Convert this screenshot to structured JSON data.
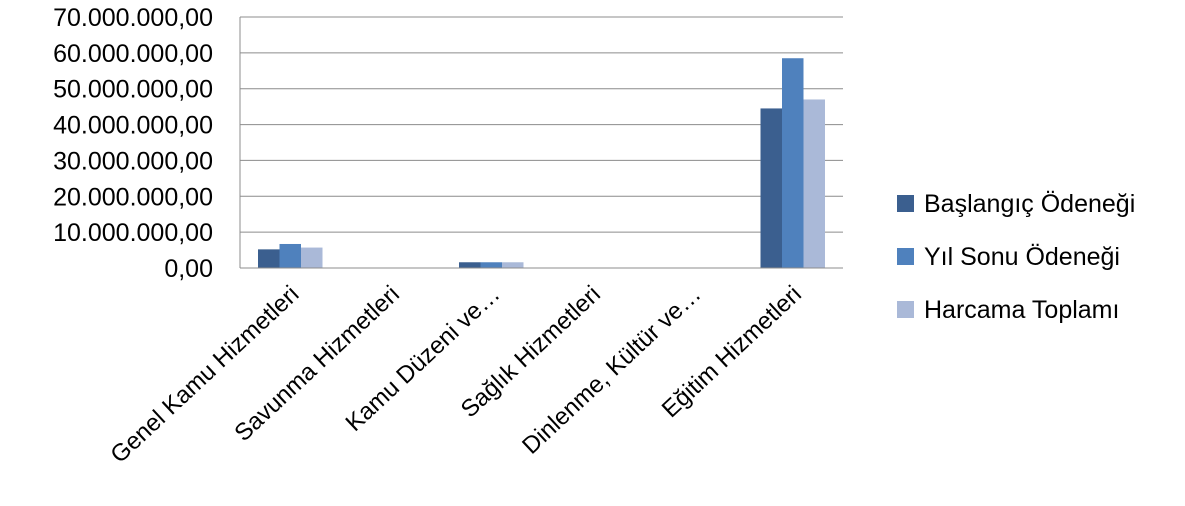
{
  "chart_data": {
    "type": "bar",
    "categories": [
      "Genel Kamu Hizmetleri",
      "Savunma Hizmetleri",
      "Kamu Düzeni ve…",
      "Sağlık Hizmetleri",
      "Dinlenme, Kültür ve…",
      "Eğitim Hizmetleri"
    ],
    "series": [
      {
        "name": "Başlangıç Ödeneği",
        "color": "#3b5f8f",
        "values": [
          5200000,
          0,
          1600000,
          0,
          0,
          44500000
        ]
      },
      {
        "name": "Yıl Sonu Ödeneği",
        "color": "#4f81bd",
        "values": [
          6700000,
          0,
          1600000,
          0,
          0,
          58500000
        ]
      },
      {
        "name": "Harcama Toplamı",
        "color": "#aab9d8",
        "values": [
          5700000,
          0,
          1600000,
          0,
          0,
          47000000
        ]
      }
    ],
    "yticks": [
      "0,00",
      "10.000.000,00",
      "20.000.000,00",
      "30.000.000,00",
      "40.000.000,00",
      "50.000.000,00",
      "60.000.000,00",
      "70.000.000,00"
    ],
    "ylim": [
      0,
      70000000
    ],
    "title": "",
    "xlabel": "",
    "ylabel": "",
    "grid": true,
    "legend": "right"
  }
}
